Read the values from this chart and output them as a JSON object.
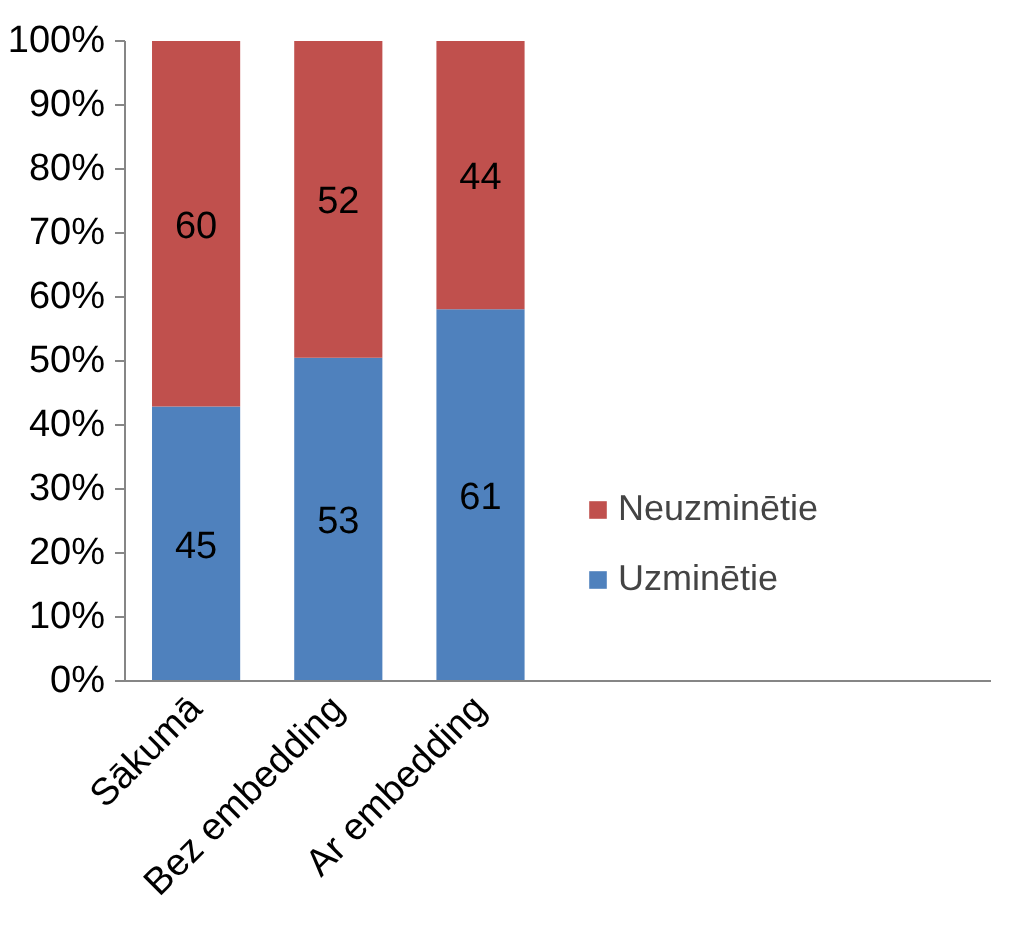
{
  "chart_data": {
    "type": "bar",
    "stacked": true,
    "categories": [
      "Sākumā",
      "Bez embedding",
      "Ar embedding"
    ],
    "series": [
      {
        "name": "Uzminētie",
        "color": "#4f81bd",
        "values": [
          42.9,
          50.5,
          58.1
        ]
      },
      {
        "name": "Neuzminētie",
        "color": "#c0504d",
        "values": [
          57.1,
          49.5,
          41.9
        ]
      }
    ],
    "annotations": [
      "45",
      "53",
      "61",
      "60",
      "52",
      "44"
    ],
    "ylim": [
      0,
      100
    ],
    "yticks": [
      {
        "value": 0,
        "label": "0%"
      },
      {
        "value": 10,
        "label": "10%"
      },
      {
        "value": 20,
        "label": "20%"
      },
      {
        "value": 30,
        "label": "30%"
      },
      {
        "value": 40,
        "label": "40%"
      },
      {
        "value": 50,
        "label": "50%"
      },
      {
        "value": 60,
        "label": "60%"
      },
      {
        "value": 70,
        "label": "70%"
      },
      {
        "value": 80,
        "label": "80%"
      },
      {
        "value": 90,
        "label": "90%"
      },
      {
        "value": 100,
        "label": "100%"
      }
    ],
    "legend": "right",
    "grid": false
  }
}
